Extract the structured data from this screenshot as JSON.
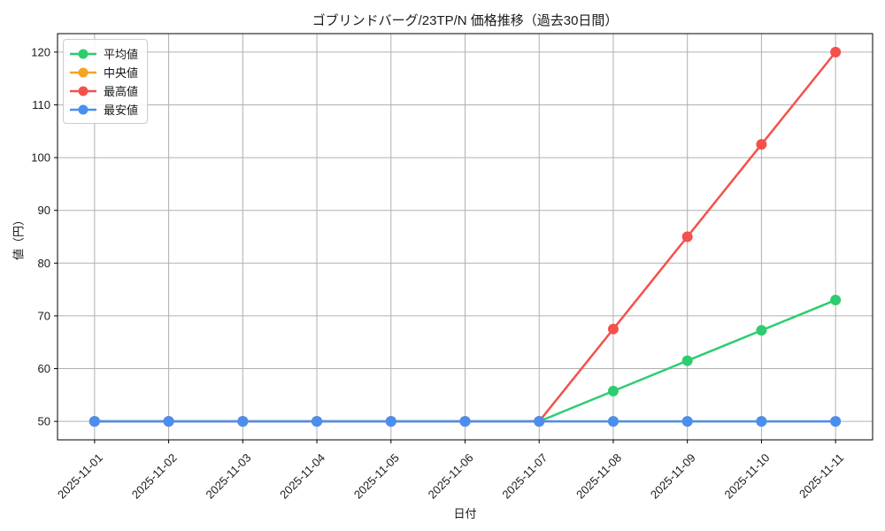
{
  "figure": {
    "background": "#ffffff",
    "grid_color": "#b0b0b0",
    "spine_color": "#000000"
  },
  "chart_data": {
    "type": "line",
    "title": "ゴブリンドバーグ/23TP/N 価格推移（過去30日間）",
    "xlabel": "日付",
    "ylabel": "値（円）",
    "x": [
      "2025-11-01",
      "2025-11-02",
      "2025-11-03",
      "2025-11-04",
      "2025-11-05",
      "2025-11-06",
      "2025-11-07",
      "2025-11-08",
      "2025-11-09",
      "2025-11-10",
      "2025-11-11"
    ],
    "series": [
      {
        "name": "平均値",
        "color": "#2ecc71",
        "values": [
          50,
          50,
          50,
          50,
          50,
          50,
          50,
          55.75,
          61.5,
          67.25,
          73
        ]
      },
      {
        "name": "中央値",
        "color": "#f7a41d",
        "values": [
          50,
          50,
          50,
          50,
          50,
          50,
          50,
          50,
          50,
          50,
          50
        ]
      },
      {
        "name": "最高値",
        "color": "#f4514c",
        "values": [
          50,
          50,
          50,
          50,
          50,
          50,
          50,
          67.5,
          85,
          102.5,
          120
        ]
      },
      {
        "name": "最安値",
        "color": "#4a8ff0",
        "values": [
          50,
          50,
          50,
          50,
          50,
          50,
          50,
          50,
          50,
          50,
          50
        ]
      }
    ],
    "yticks": [
      50,
      60,
      70,
      80,
      90,
      100,
      110,
      120
    ],
    "ylim": [
      46.5,
      123.5
    ],
    "xlim": [
      -0.5,
      10.5
    ],
    "grid": true,
    "legend_position": "upper left",
    "marker": "circle",
    "x_tick_rotation": 45
  }
}
